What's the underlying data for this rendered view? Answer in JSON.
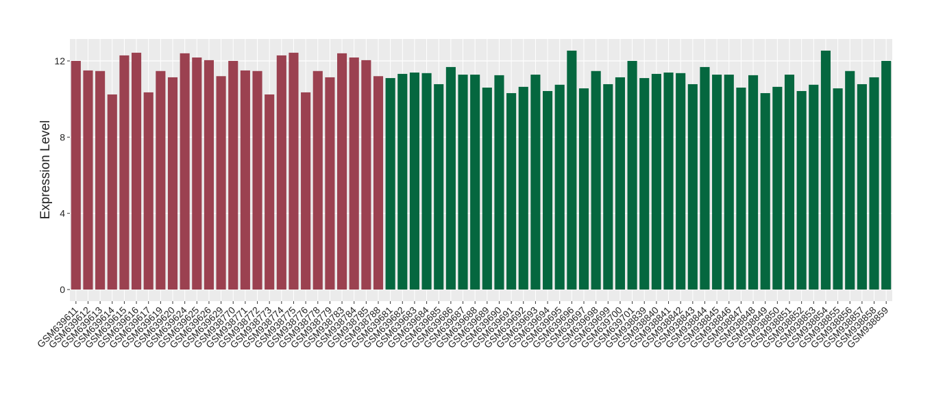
{
  "chart_data": {
    "type": "bar",
    "y_label": "Expression Level",
    "categories": [
      "GSM639611",
      "GSM639612",
      "GSM639613",
      "GSM639614",
      "GSM639615",
      "GSM639616",
      "GSM639617",
      "GSM639619",
      "GSM639620",
      "GSM639624",
      "GSM639625",
      "GSM639626",
      "GSM639629",
      "GSM938770",
      "GSM938771",
      "GSM938772",
      "GSM938773",
      "GSM938774",
      "GSM938775",
      "GSM938776",
      "GSM938778",
      "GSM938779",
      "GSM938783",
      "GSM938784",
      "GSM938785",
      "GSM938788",
      "GSM639681",
      "GSM639682",
      "GSM639683",
      "GSM639684",
      "GSM639685",
      "GSM639686",
      "GSM639687",
      "GSM639688",
      "GSM639689",
      "GSM639690",
      "GSM639691",
      "GSM639692",
      "GSM639693",
      "GSM639694",
      "GSM639695",
      "GSM639696",
      "GSM639697",
      "GSM639698",
      "GSM639699",
      "GSM639700",
      "GSM639701",
      "GSM938839",
      "GSM938840",
      "GSM938841",
      "GSM938842",
      "GSM938843",
      "GSM938844",
      "GSM938845",
      "GSM938846",
      "GSM938847",
      "GSM938848",
      "GSM938849",
      "GSM938850",
      "GSM938851",
      "GSM938852",
      "GSM938853",
      "GSM938854",
      "GSM938855",
      "GSM938856",
      "GSM938857",
      "GSM938858",
      "GSM938859"
    ],
    "values": [
      12.0,
      11.5,
      11.47,
      10.24,
      12.29,
      12.43,
      10.35,
      11.47,
      11.14,
      12.4,
      12.18,
      12.04,
      11.2,
      12.0,
      11.5,
      11.47,
      10.24,
      12.29,
      12.43,
      10.35,
      11.47,
      11.14,
      12.4,
      12.18,
      12.04,
      11.2,
      11.1,
      11.32,
      11.39,
      11.36,
      10.78,
      11.68,
      11.28,
      11.28,
      10.6,
      11.25,
      10.31,
      10.64,
      11.28,
      10.42,
      10.75,
      12.54,
      10.56,
      11.47,
      10.78,
      11.14,
      12.0,
      11.1,
      11.32,
      11.39,
      11.36,
      10.78,
      11.68,
      11.28,
      11.28,
      10.6,
      11.25,
      10.31,
      10.64,
      11.28,
      10.42,
      10.75,
      12.54,
      10.56,
      11.47,
      10.78,
      11.14,
      12.0
    ],
    "colors": [
      "#9b4150",
      "#9b4150",
      "#9b4150",
      "#9b4150",
      "#9b4150",
      "#9b4150",
      "#9b4150",
      "#9b4150",
      "#9b4150",
      "#9b4150",
      "#9b4150",
      "#9b4150",
      "#9b4150",
      "#9b4150",
      "#9b4150",
      "#9b4150",
      "#9b4150",
      "#9b4150",
      "#9b4150",
      "#9b4150",
      "#9b4150",
      "#9b4150",
      "#9b4150",
      "#9b4150",
      "#9b4150",
      "#9b4150",
      "#05673f",
      "#05673f",
      "#05673f",
      "#05673f",
      "#05673f",
      "#05673f",
      "#05673f",
      "#05673f",
      "#05673f",
      "#05673f",
      "#05673f",
      "#05673f",
      "#05673f",
      "#05673f",
      "#05673f",
      "#05673f",
      "#05673f",
      "#05673f",
      "#05673f",
      "#05673f",
      "#05673f",
      "#05673f",
      "#05673f",
      "#05673f",
      "#05673f",
      "#05673f",
      "#05673f",
      "#05673f",
      "#05673f",
      "#05673f",
      "#05673f",
      "#05673f",
      "#05673f",
      "#05673f",
      "#05673f",
      "#05673f",
      "#05673f",
      "#05673f",
      "#05673f",
      "#05673f",
      "#05673f",
      "#05673f"
    ],
    "ylim": [
      -0.61,
      13.15
    ],
    "yticks": [
      0,
      4,
      8,
      12
    ],
    "grid": true
  }
}
